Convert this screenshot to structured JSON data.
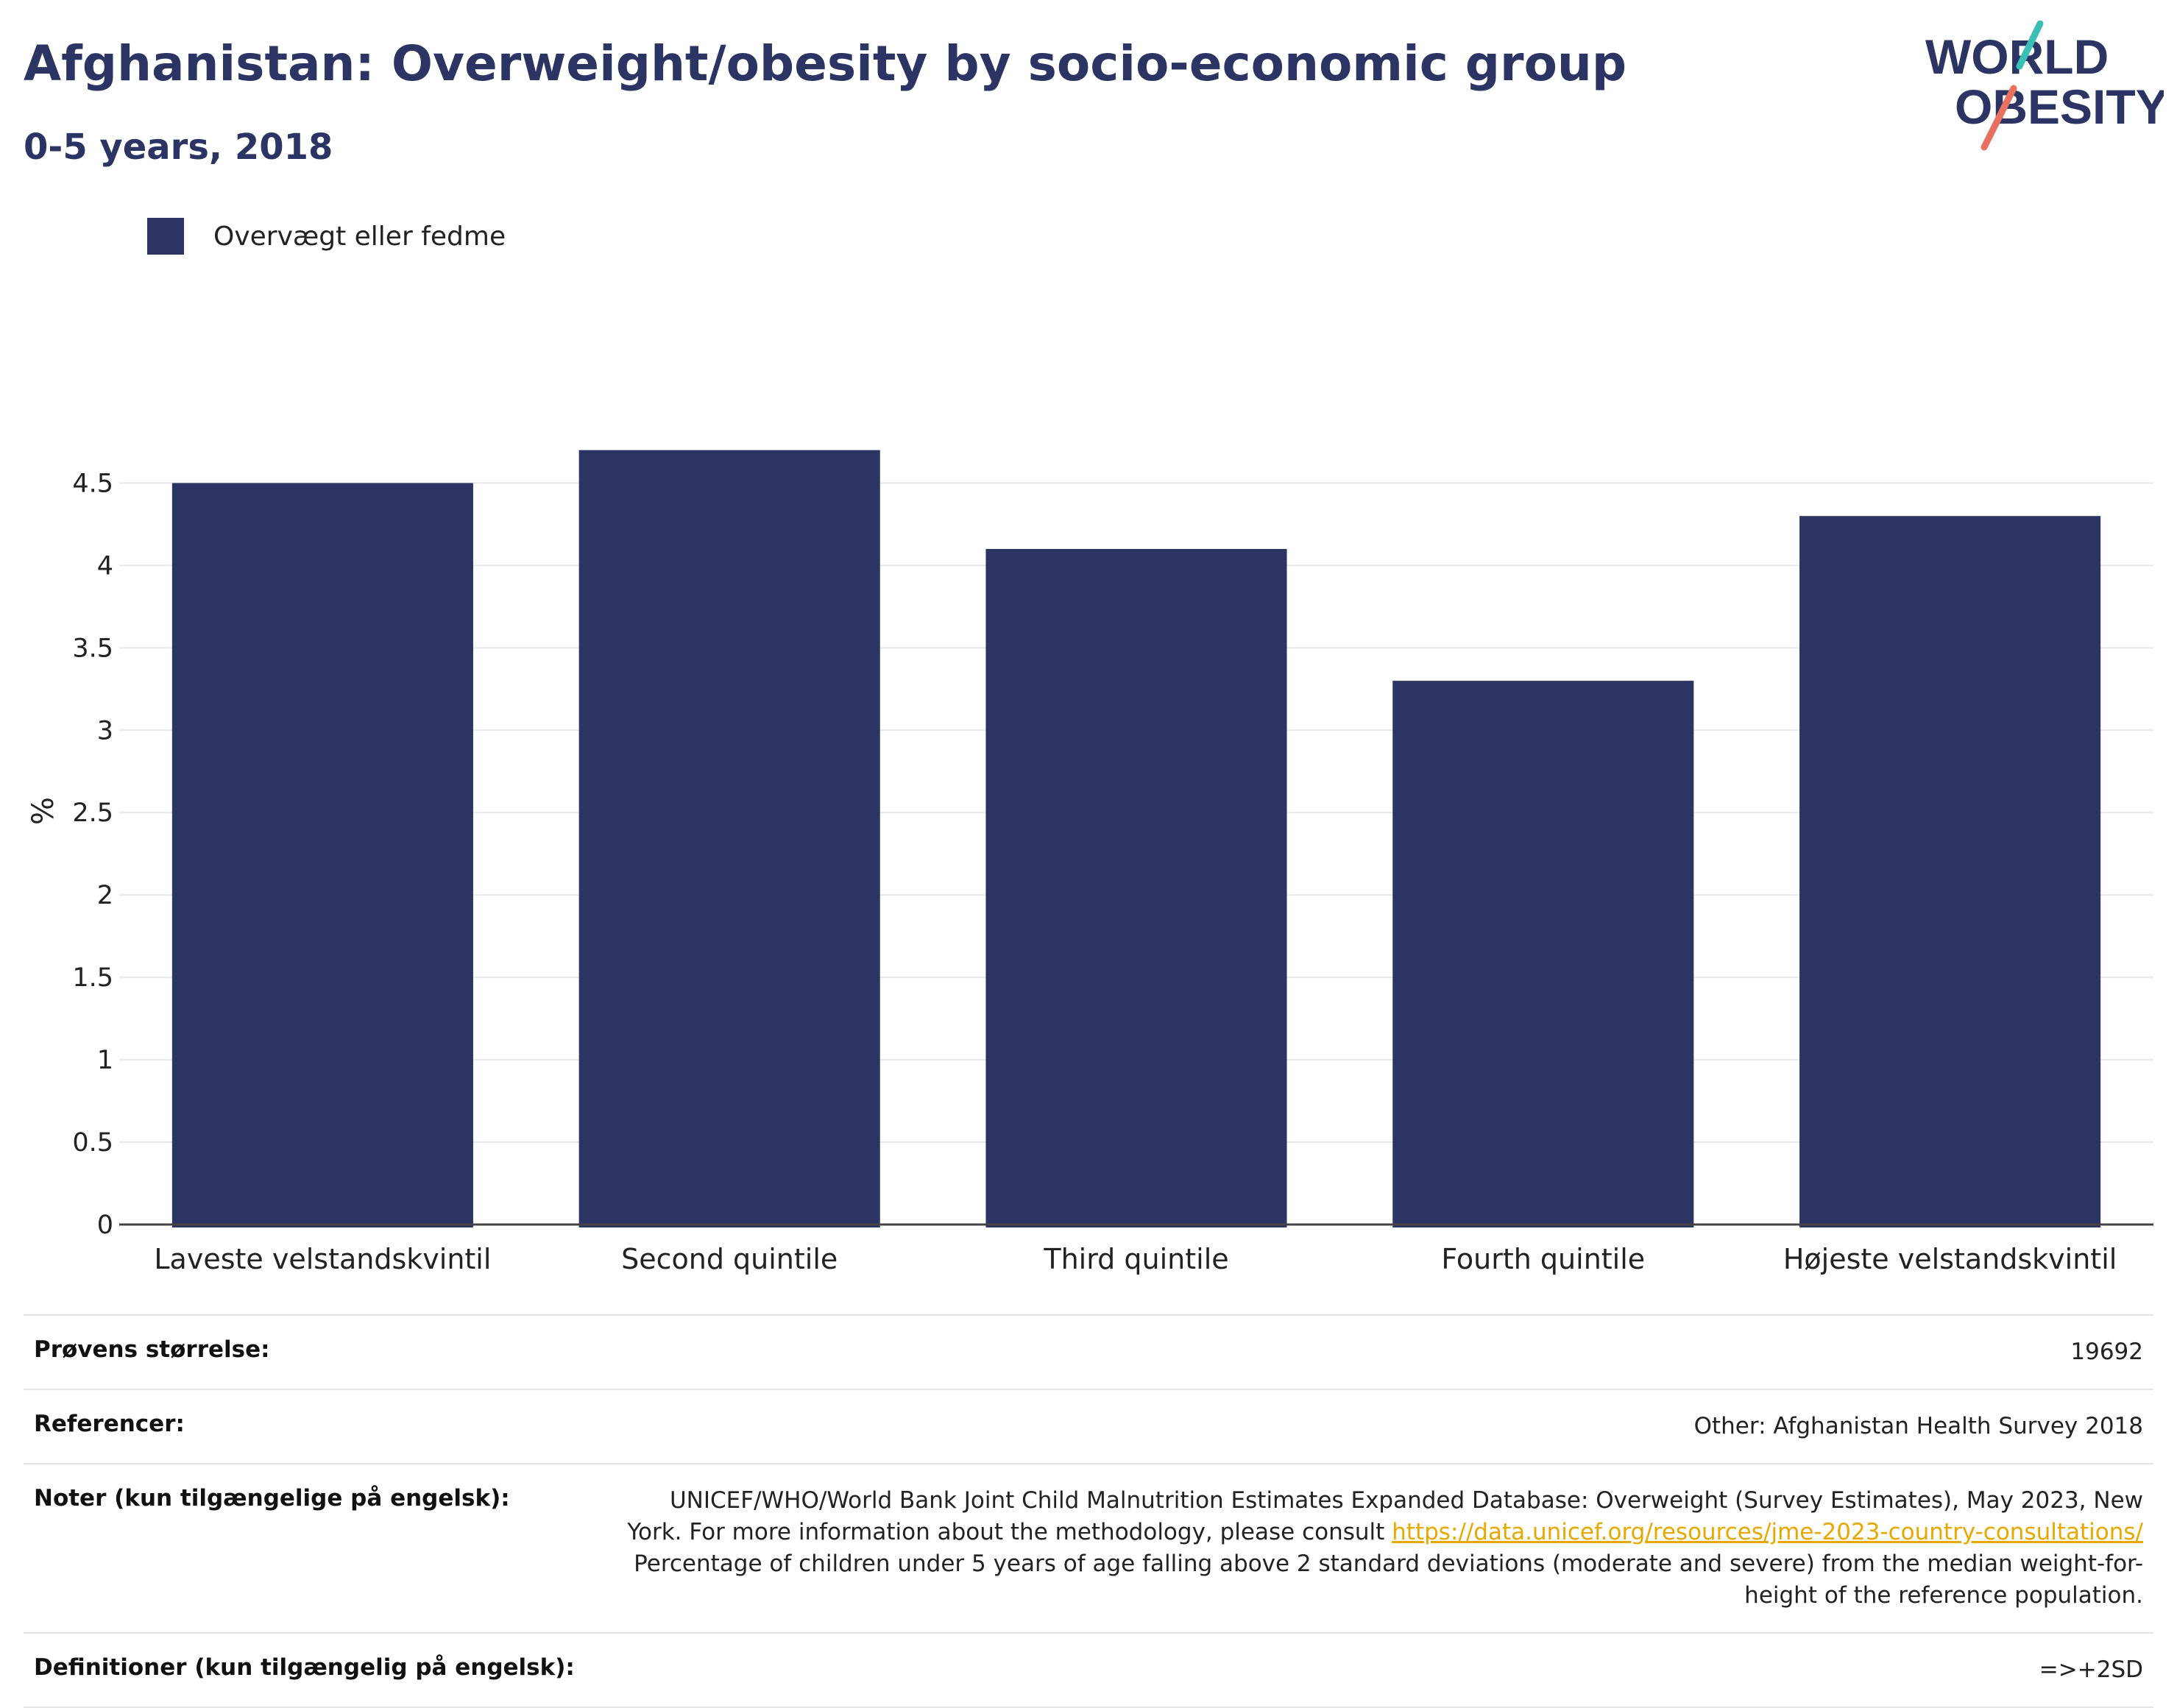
{
  "header": {
    "title": "Afghanistan: Overweight/obesity by socio-economic group",
    "subtitle": "0-5 years, 2018"
  },
  "logo": {
    "line1": "WORLD",
    "line2": "OBESITY"
  },
  "chart_data": {
    "type": "bar",
    "categories": [
      "Laveste velstandskvintil",
      "Second quintile",
      "Third quintile",
      "Fourth quintile",
      "Højeste velstandskvintil"
    ],
    "series": [
      {
        "name": "Overvægt eller fedme",
        "values": [
          4.5,
          4.7,
          4.1,
          3.3,
          4.3
        ]
      }
    ],
    "ylabel": "%",
    "xlabel": "",
    "ylim": [
      0,
      5.02
    ],
    "yticks": [
      "0",
      "0.5",
      "1",
      "1.5",
      "2",
      "2.5",
      "3",
      "3.5",
      "4",
      "4.5"
    ],
    "grid": true,
    "legend_position": "top-left",
    "bar_color": "#2b3462"
  },
  "meta": {
    "sample_size_label": "Prøvens størrelse:",
    "sample_size_value": "19692",
    "references_label": "Referencer:",
    "references_value": "Other: Afghanistan Health Survey 2018",
    "notes_label": "Noter (kun tilgængelige på engelsk):",
    "notes_text_1": "UNICEF/WHO/World Bank Joint Child Malnutrition Estimates Expanded Database: Overweight (Survey Estimates), May 2023, New York. For more information about the methodology, please consult",
    "notes_link": "https://data.unicef.org/resources/jme-2023-country-consultations/",
    "notes_text_2": "Percentage of children under 5 years of age falling above 2 standard deviations (moderate and severe) from the median weight-for-height of the reference population.",
    "definitions_label": "Definitioner (kun tilgængelig på engelsk):",
    "definitions_value": "=>+2SD"
  },
  "colors": {
    "brand": "#2b3462",
    "teal": "#3bbfb5",
    "coral": "#e8715f",
    "link": "#e9a800"
  }
}
